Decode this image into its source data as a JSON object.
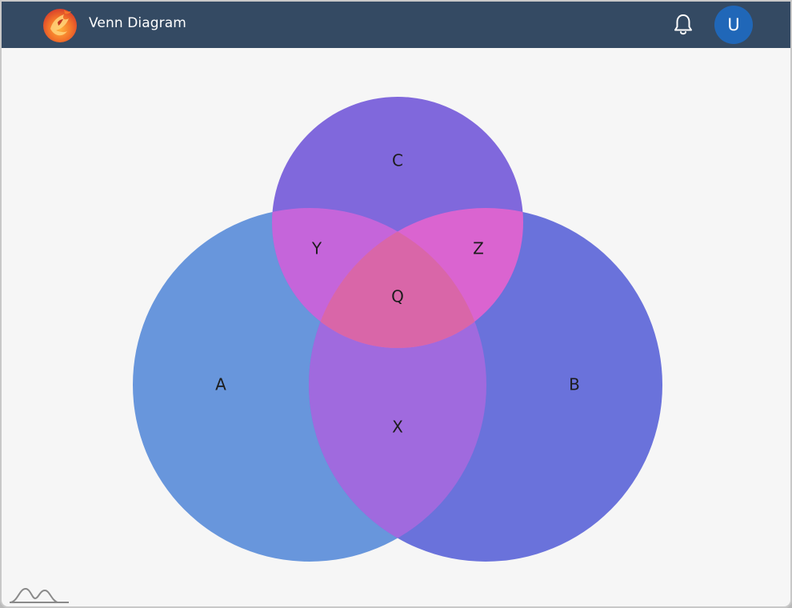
{
  "header": {
    "title": "Venn Diagram",
    "avatar_initial": "U",
    "logo_icon": "phoenix-logo-icon",
    "bell_icon": "bell-icon"
  },
  "colors": {
    "header_bg": "#344a63",
    "avatar_bg": "#2067b8",
    "circle_a": "#6896dc",
    "circle_b": "#6a72db",
    "circle_c": "#8068dc",
    "region_y": "#c565da",
    "region_z": "#da64d0",
    "region_x": "#a06ade",
    "region_q": "#d966a8"
  },
  "chart_data": {
    "type": "venn",
    "sets": [
      {
        "name": "A",
        "label": "A"
      },
      {
        "name": "B",
        "label": "B"
      },
      {
        "name": "C",
        "label": "C"
      }
    ],
    "intersections": [
      {
        "sets": [
          "A",
          "B"
        ],
        "label": "X"
      },
      {
        "sets": [
          "A",
          "C"
        ],
        "label": "Y"
      },
      {
        "sets": [
          "B",
          "C"
        ],
        "label": "Z"
      },
      {
        "sets": [
          "A",
          "B",
          "C"
        ],
        "label": "Q"
      }
    ]
  },
  "footer": {
    "watermark_icon": "wave-icon"
  }
}
